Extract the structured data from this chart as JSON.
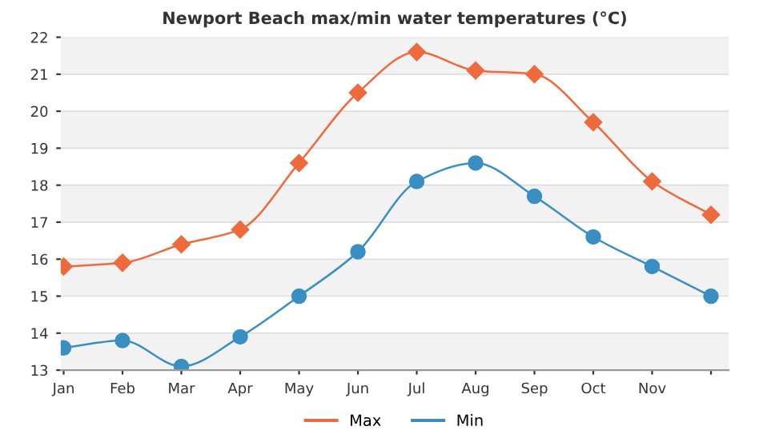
{
  "chart_data": {
    "type": "line",
    "title": "Newport Beach max/min water temperatures (°C)",
    "categories": [
      "Jan",
      "Feb",
      "Mar",
      "Apr",
      "May",
      "Jun",
      "Jul",
      "Aug",
      "Sep",
      "Oct",
      "Nov",
      null
    ],
    "series": [
      {
        "name": "Max",
        "color": "#ee6a3c",
        "marker": "diamond",
        "values": [
          15.8,
          15.9,
          16.4,
          16.8,
          18.6,
          20.5,
          21.6,
          21.1,
          21.0,
          19.7,
          18.1,
          17.2
        ]
      },
      {
        "name": "Min",
        "color": "#3a8fc2",
        "marker": "circle",
        "values": [
          13.6,
          13.8,
          13.1,
          13.9,
          15.0,
          16.2,
          18.1,
          18.6,
          17.7,
          16.6,
          15.8,
          15.0
        ]
      }
    ],
    "ylim": [
      13,
      22
    ],
    "yticks": [
      13,
      14,
      15,
      16,
      17,
      18,
      19,
      20,
      21,
      22
    ],
    "grid": "y",
    "legend": "bottom"
  }
}
